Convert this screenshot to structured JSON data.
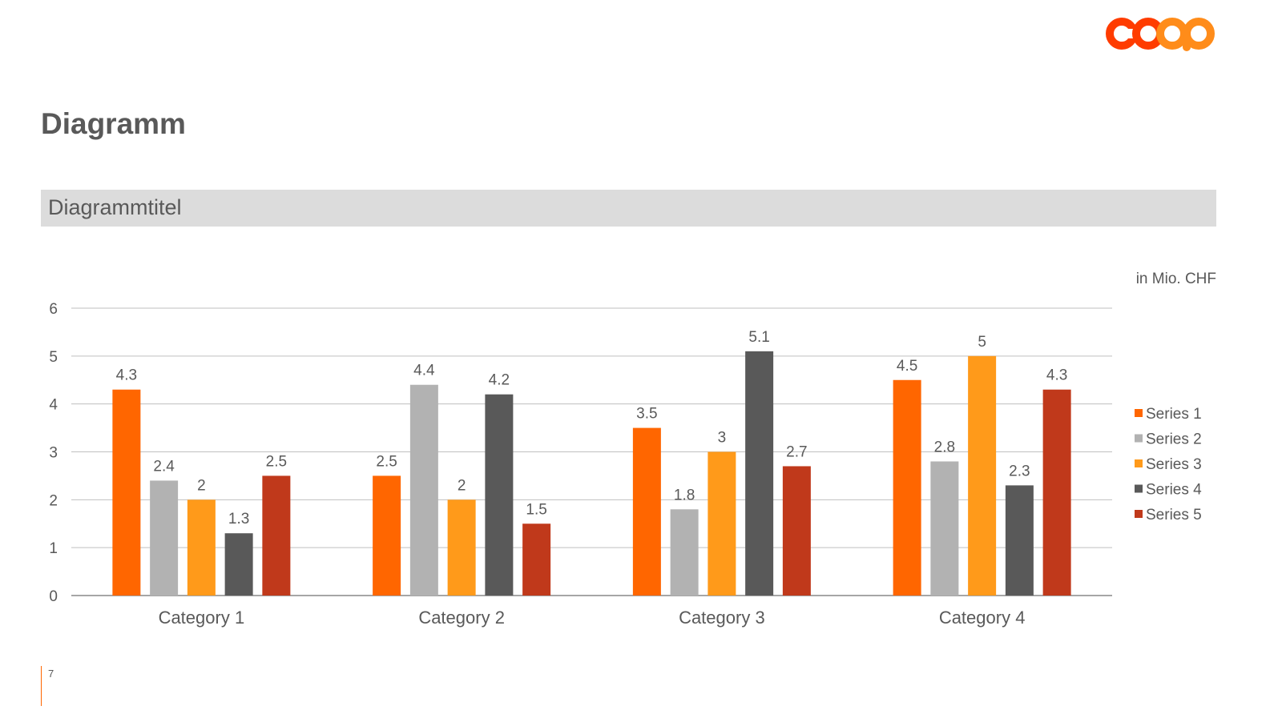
{
  "header": {
    "logo_text": "coop",
    "page_title": "Diagramm",
    "subtitle": "Diagrammtitel"
  },
  "footer": {
    "page_number": "7"
  },
  "colors": {
    "logo_red": "#ff3c00",
    "logo_orange": "#ff8c1a",
    "accent": "#ff6600"
  },
  "chart_data": {
    "type": "bar",
    "unit_label": "in Mio. CHF",
    "categories": [
      "Category 1",
      "Category 2",
      "Category 3",
      "Category 4"
    ],
    "series": [
      {
        "name": "Series 1",
        "color": "#ff6600",
        "values": [
          4.3,
          2.5,
          3.5,
          4.5
        ]
      },
      {
        "name": "Series 2",
        "color": "#b2b2b2",
        "values": [
          2.4,
          4.4,
          1.8,
          2.8
        ]
      },
      {
        "name": "Series 3",
        "color": "#ff9a1a",
        "values": [
          2,
          2,
          3,
          5
        ]
      },
      {
        "name": "Series 4",
        "color": "#595959",
        "values": [
          1.3,
          4.2,
          5.1,
          2.3
        ]
      },
      {
        "name": "Series 5",
        "color": "#c0391b",
        "values": [
          2.5,
          1.5,
          2.7,
          4.3
        ]
      }
    ],
    "ylim": [
      0,
      6
    ],
    "yticks": [
      0,
      1,
      2,
      3,
      4,
      5,
      6
    ],
    "grid": true,
    "data_labels": true,
    "legend_position": "right"
  }
}
